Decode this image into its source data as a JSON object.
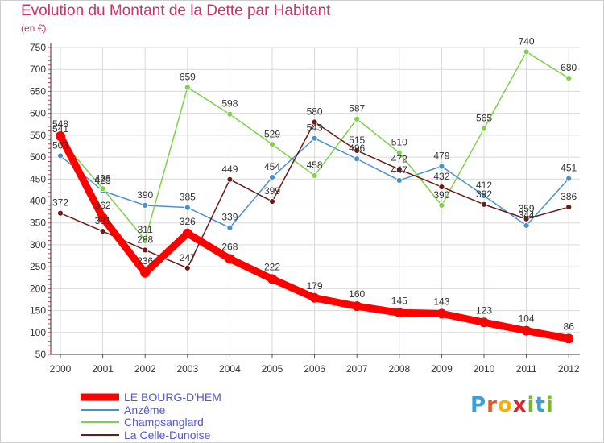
{
  "chart_data": {
    "type": "line",
    "title": "Evolution du Montant de la Dette par Habitant",
    "subtitle": "(en €)",
    "x": [
      "2000",
      "2001",
      "2002",
      "2003",
      "2004",
      "2005",
      "2006",
      "2007",
      "2008",
      "2009",
      "2010",
      "2011",
      "2012"
    ],
    "ylim": [
      50,
      750
    ],
    "yticks": [
      50,
      100,
      150,
      200,
      250,
      300,
      350,
      400,
      450,
      500,
      550,
      600,
      650,
      700,
      750
    ],
    "grid": true,
    "legend_position": "bottom-left",
    "series": [
      {
        "name": "LE BOURG-D'HEM",
        "color": "#ff0000",
        "values": [
          548,
          362,
          236,
          326,
          268,
          222,
          179,
          160,
          145,
          143,
          123,
          104,
          86
        ]
      },
      {
        "name": "Anzême",
        "color": "#4a90d0",
        "values": [
          503,
          423,
          390,
          385,
          339,
          454,
          543,
          496,
          447,
          479,
          412,
          344,
          451
        ]
      },
      {
        "name": "Champsanglard",
        "color": "#7fd14a",
        "values": [
          541,
          428,
          311,
          659,
          598,
          529,
          458,
          587,
          510,
          390,
          565,
          740,
          680
        ]
      },
      {
        "name": "La Celle-Dunoise",
        "color": "#6b1a1a",
        "values": [
          372,
          331,
          288,
          247,
          449,
          399,
          580,
          515,
          472,
          432,
          392,
          359,
          386
        ]
      }
    ]
  },
  "logo": {
    "letters": [
      "P",
      "r",
      "o",
      "x",
      "i",
      "t",
      "i"
    ],
    "colors": [
      "#3aa0d8",
      "#e85a2a",
      "#f3b400",
      "#e0262b",
      "#7ab929",
      "#3aa0d8",
      "#7ab929"
    ]
  }
}
